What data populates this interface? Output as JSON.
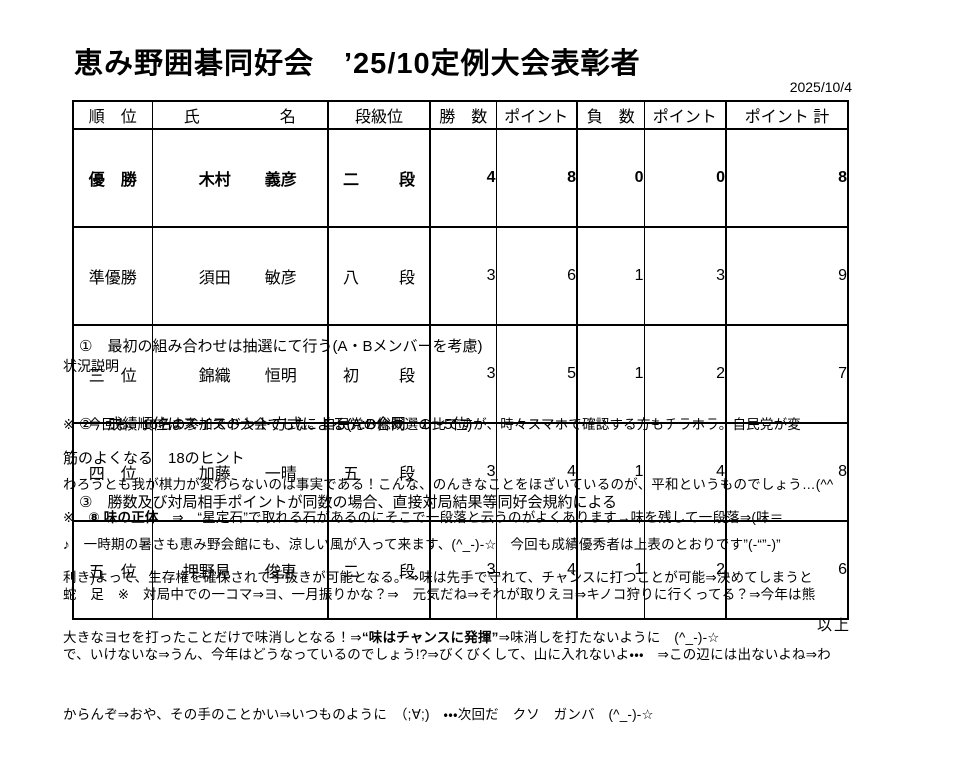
{
  "header": {
    "title": "恵み野囲碁同好会　’25/10定例大会表彰者",
    "date": "2025/10/4"
  },
  "table": {
    "headers": {
      "rank": "順　位",
      "name": "氏　　　　　名",
      "grade": "段級位",
      "wins": "勝　数",
      "win_points": "ポイント",
      "losses": "負　数",
      "loss_points": "ポイント",
      "total_points": "ポイント 計"
    },
    "rows": [
      {
        "rank": "優　勝",
        "last": "木村",
        "first": "義彦",
        "g1": "二",
        "g2": "段",
        "wins": "4",
        "win_points": "8",
        "losses": "0",
        "loss_points": "0",
        "total": "8"
      },
      {
        "rank": "準優勝",
        "last": "須田",
        "first": "敏彦",
        "g1": "八",
        "g2": "段",
        "wins": "3",
        "win_points": "6",
        "losses": "1",
        "loss_points": "3",
        "total": "9"
      },
      {
        "rank": "三　位",
        "last": "錦織",
        "first": "恒明",
        "g1": "初",
        "g2": "段",
        "wins": "3",
        "win_points": "5",
        "losses": "1",
        "loss_points": "2",
        "total": "7"
      },
      {
        "rank": "四　位",
        "last": "加藤",
        "first": "一晴",
        "g1": "五",
        "g2": "段",
        "wins": "3",
        "win_points": "4",
        "losses": "1",
        "loss_points": "4",
        "total": "8"
      },
      {
        "rank": "五　位",
        "last": "押野見",
        "first": "俊恵",
        "g1": "二",
        "g2": "段",
        "wins": "3",
        "win_points": "4",
        "losses": "1",
        "loss_points": "2",
        "total": "6"
      }
    ]
  },
  "notes": {
    "items": [
      "①　最初の組み合わせは抽選にて行う(A・Bメンバーを考慮)",
      "②　成績順位はスイスドント方式による(A:B合同　1～5位)",
      "③　勝数及び対局相手ポイントが同数の場合、直接対局結果等同好会規約による"
    ]
  },
  "situation": {
    "label": "状況説明",
    "lines": [
      "※　今回も、15名の参加での大会でした。自民党の総裁選の比ですが、時々スマホで確認する方もチラホラ。自民党が変",
      "わろうとも我が棋力が変わらないのは事実である！こんな、のんきなことをほざいているのが、平和というものでしょう…(^^",
      "♪　一時期の暑さも恵み野会館にも、涼しい風が入って来ます、(^_-)-☆　今回も成績優秀者は上表のとおりです”(-“”-)”"
    ]
  },
  "hints": {
    "title": "筋のよくなる　18のヒント",
    "line1_pre": "※　",
    "line1_bold": "⑧ 味の正体",
    "line1_rest": "　⇒　“星定石”で取れる石があるのにそこで一段落と云うのがよくあります→味を残して一段落⇒(味＝",
    "line2": "利き)よって、生存権を確保されて手抜きが可能となる。⇒味は先手で守れて、チャンスに打つことが可能⇒決めてしまうと",
    "line3_pre": "大きなヨセを打ったことだけで味消しとなる！⇒",
    "line3_bold": "“味はチャンスに発揮”",
    "line3_rest": "⇒味消しを打たないように　(^_-)-☆"
  },
  "snake": {
    "lines": [
      "蛇　足　※　対局中での一コマ⇒ヨ、一月振りかな？⇒　元気だね⇒それが取りえヨ⇒キノコ狩りに行くってる？⇒今年は熊",
      "で、いけないな⇒うん、今年はどうなっているのでしょう!?⇒びくびくして、山に入れないよ・・・　⇒この辺には出ないよね⇒わ",
      "からんぞ⇒おや、その手のことかい⇒いつものように　（;∀;)　・・・次回だ　クソ　ガンバ　(^_-)-☆"
    ]
  },
  "footer": {
    "closing": "以上"
  }
}
